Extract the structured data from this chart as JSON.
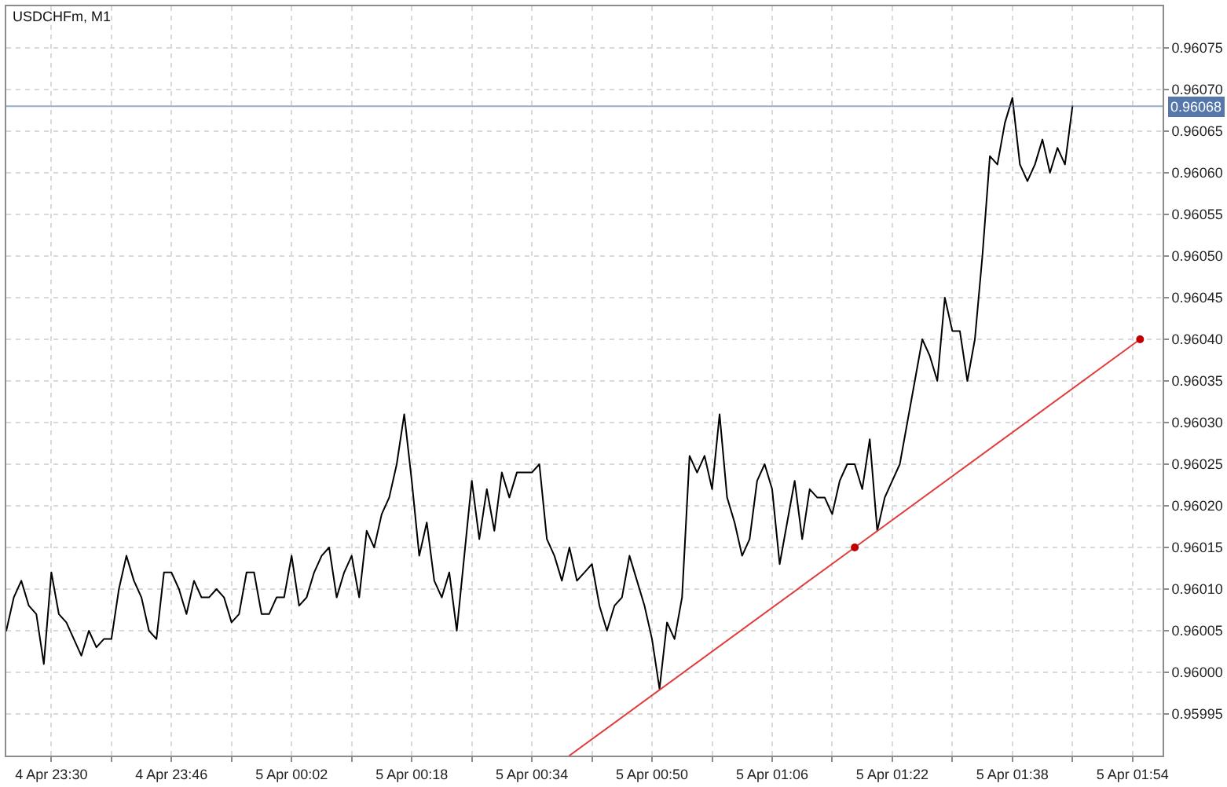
{
  "chart_data": {
    "type": "line",
    "title": "USDCHFm, M1",
    "x": [
      "--04-04T23:24",
      "--04-04T23:25",
      "--04-04T23:26",
      "--04-04T23:27",
      "--04-04T23:28",
      "--04-04T23:29",
      "--04-04T23:30",
      "--04-04T23:31",
      "--04-04T23:32",
      "--04-04T23:33",
      "--04-04T23:34",
      "--04-04T23:35",
      "--04-04T23:36",
      "--04-04T23:37",
      "--04-04T23:38",
      "--04-04T23:39",
      "--04-04T23:40",
      "--04-04T23:41",
      "--04-04T23:42",
      "--04-04T23:43",
      "--04-04T23:44",
      "--04-04T23:45",
      "--04-04T23:46",
      "--04-04T23:47",
      "--04-04T23:48",
      "--04-04T23:49",
      "--04-04T23:50",
      "--04-04T23:51",
      "--04-04T23:52",
      "--04-04T23:53",
      "--04-04T23:54",
      "--04-04T23:55",
      "--04-04T23:56",
      "--04-04T23:57",
      "--04-04T23:58",
      "--04-04T23:59",
      "--04-05T00:00",
      "--04-05T00:01",
      "--04-05T00:02",
      "--04-05T00:03",
      "--04-05T00:04",
      "--04-05T00:05",
      "--04-05T00:06",
      "--04-05T00:07",
      "--04-05T00:08",
      "--04-05T00:09",
      "--04-05T00:10",
      "--04-05T00:11",
      "--04-05T00:12",
      "--04-05T00:13",
      "--04-05T00:14",
      "--04-05T00:15",
      "--04-05T00:16",
      "--04-05T00:17",
      "--04-05T00:18",
      "--04-05T00:19",
      "--04-05T00:20",
      "--04-05T00:21",
      "--04-05T00:22",
      "--04-05T00:23",
      "--04-05T00:24",
      "--04-05T00:25",
      "--04-05T00:26",
      "--04-05T00:27",
      "--04-05T00:28",
      "--04-05T00:29",
      "--04-05T00:30",
      "--04-05T00:31",
      "--04-05T00:32",
      "--04-05T00:33",
      "--04-05T00:34",
      "--04-05T00:35",
      "--04-05T00:36",
      "--04-05T00:37",
      "--04-05T00:38",
      "--04-05T00:39",
      "--04-05T00:40",
      "--04-05T00:41",
      "--04-05T00:42",
      "--04-05T00:43",
      "--04-05T00:44",
      "--04-05T00:45",
      "--04-05T00:46",
      "--04-05T00:47",
      "--04-05T00:48",
      "--04-05T00:49",
      "--04-05T00:50",
      "--04-05T00:51",
      "--04-05T00:52",
      "--04-05T00:53",
      "--04-05T00:54",
      "--04-05T00:55",
      "--04-05T00:56",
      "--04-05T00:57",
      "--04-05T00:58",
      "--04-05T00:59",
      "--04-05T01:00",
      "--04-05T01:01",
      "--04-05T01:02",
      "--04-05T01:03",
      "--04-05T01:04",
      "--04-05T01:05",
      "--04-05T01:06",
      "--04-05T01:07",
      "--04-05T01:08",
      "--04-05T01:09",
      "--04-05T01:10",
      "--04-05T01:11",
      "--04-05T01:12",
      "--04-05T01:13",
      "--04-05T01:14",
      "--04-05T01:15",
      "--04-05T01:16",
      "--04-05T01:17",
      "--04-05T01:18",
      "--04-05T01:19",
      "--04-05T01:20",
      "--04-05T01:21",
      "--04-05T01:22",
      "--04-05T01:23",
      "--04-05T01:24",
      "--04-05T01:25",
      "--04-05T01:26",
      "--04-05T01:27",
      "--04-05T01:28",
      "--04-05T01:29",
      "--04-05T01:30",
      "--04-05T01:31",
      "--04-05T01:32",
      "--04-05T01:33",
      "--04-05T01:34",
      "--04-05T01:35",
      "--04-05T01:36",
      "--04-05T01:37",
      "--04-05T01:38",
      "--04-05T01:39",
      "--04-05T01:40",
      "--04-05T01:41",
      "--04-05T01:42",
      "--04-05T01:43",
      "--04-05T01:44",
      "--04-05T01:45",
      "--04-05T01:46"
    ],
    "series": [
      {
        "color": "#000000",
        "values": [
          0.96005,
          0.96009,
          0.96011,
          0.96008,
          0.96007,
          0.96001,
          0.96012,
          0.96007,
          0.96006,
          0.96004,
          0.96002,
          0.96005,
          0.96003,
          0.96004,
          0.96004,
          0.9601,
          0.96014,
          0.96011,
          0.96009,
          0.96005,
          0.96004,
          0.96012,
          0.96012,
          0.9601,
          0.96007,
          0.96011,
          0.96009,
          0.96009,
          0.9601,
          0.96009,
          0.96006,
          0.96007,
          0.96012,
          0.96012,
          0.96007,
          0.96007,
          0.96009,
          0.96009,
          0.96014,
          0.96008,
          0.96009,
          0.96012,
          0.96014,
          0.96015,
          0.96009,
          0.96012,
          0.96014,
          0.96009,
          0.96017,
          0.96015,
          0.96019,
          0.96021,
          0.96025,
          0.96031,
          0.96023,
          0.96014,
          0.96018,
          0.96011,
          0.96009,
          0.96012,
          0.96005,
          0.96014,
          0.96023,
          0.96016,
          0.96022,
          0.96017,
          0.96024,
          0.96021,
          0.96024,
          0.96024,
          0.96024,
          0.96025,
          0.96016,
          0.96014,
          0.96011,
          0.96015,
          0.96011,
          0.96012,
          0.96013,
          0.96008,
          0.96005,
          0.96008,
          0.96009,
          0.96014,
          0.96011,
          0.96008,
          0.96004,
          0.95998,
          0.96006,
          0.96004,
          0.96009,
          0.96026,
          0.96024,
          0.96026,
          0.96022,
          0.96031,
          0.96021,
          0.96018,
          0.96014,
          0.96016,
          0.96023,
          0.96025,
          0.96022,
          0.96013,
          0.96018,
          0.96023,
          0.96016,
          0.96022,
          0.96021,
          0.96021,
          0.96019,
          0.96023,
          0.96025,
          0.96025,
          0.96022,
          0.96028,
          0.96017,
          0.96021,
          0.96023,
          0.96025,
          0.9603,
          0.96035,
          0.9604,
          0.96038,
          0.96035,
          0.96045,
          0.96041,
          0.96041,
          0.96035,
          0.9604,
          0.9605,
          0.96062,
          0.96061,
          0.96066,
          0.96069,
          0.96061,
          0.96059,
          0.96061,
          0.96064,
          0.9606,
          0.96063,
          0.96061,
          0.96068
        ]
      },
      {
        "type": "line",
        "color": "#e23b3b",
        "x": [
          "--04-05T00:39",
          "--04-05T01:17",
          "--04-05T01:55"
        ],
        "values": [
          0.9599,
          0.96015,
          0.9604
        ]
      },
      {
        "type": "scatter",
        "marker": "circle",
        "color": "#c00000",
        "x": [
          "--04-05T01:17",
          "--04-05T01:55"
        ],
        "values": [
          0.96015,
          0.9604
        ]
      }
    ],
    "ref_lines": [
      {
        "axis": "y",
        "value": 0.96068,
        "label": "0.96068",
        "color": "#5577aa"
      }
    ],
    "xlim": [
      "--04-04T23:24",
      "--04-05T01:58"
    ],
    "xticks": [
      {
        "value": "--04-04T23:30",
        "label": "4 Apr 23:30"
      },
      {
        "value": "--04-04T23:38",
        "label": null
      },
      {
        "value": "--04-04T23:46",
        "label": "4 Apr 23:46"
      },
      {
        "value": "--04-04T23:54",
        "label": null
      },
      {
        "value": "--04-05T00:02",
        "label": "5 Apr 00:02"
      },
      {
        "value": "--04-05T00:10",
        "label": null
      },
      {
        "value": "--04-05T00:18",
        "label": "5 Apr 00:18"
      },
      {
        "value": "--04-05T00:26",
        "label": null
      },
      {
        "value": "--04-05T00:34",
        "label": "5 Apr 00:34"
      },
      {
        "value": "--04-05T00:42",
        "label": null
      },
      {
        "value": "--04-05T00:50",
        "label": "5 Apr 00:50"
      },
      {
        "value": "--04-05T00:58",
        "label": null
      },
      {
        "value": "--04-05T01:06",
        "label": "5 Apr 01:06"
      },
      {
        "value": "--04-05T01:14",
        "label": null
      },
      {
        "value": "--04-05T01:22",
        "label": "5 Apr 01:22"
      },
      {
        "value": "--04-05T01:30",
        "label": null
      },
      {
        "value": "--04-05T01:38",
        "label": "5 Apr 01:38"
      },
      {
        "value": "--04-05T01:46",
        "label": null
      },
      {
        "value": "--04-05T01:54",
        "label": "5 Apr 01:54"
      }
    ],
    "ylim": [
      0.9599,
      0.9608
    ],
    "yticks": [
      0.95995,
      {
        "value": 0.96,
        "label": "0.96000"
      },
      0.96005,
      {
        "value": 0.9601,
        "label": "0.96010"
      },
      0.96015,
      {
        "value": 0.9602,
        "label": "0.96020"
      },
      0.96025,
      {
        "value": 0.9603,
        "label": "0.96030"
      },
      0.96035,
      {
        "value": 0.9604,
        "label": "0.96040"
      },
      0.96045,
      {
        "value": 0.9605,
        "label": "0.96050"
      },
      0.96055,
      {
        "value": 0.9606,
        "label": "0.96060"
      },
      0.96065,
      {
        "value": 0.9607,
        "label": "0.96070"
      },
      0.96075
    ],
    "grid": true
  }
}
